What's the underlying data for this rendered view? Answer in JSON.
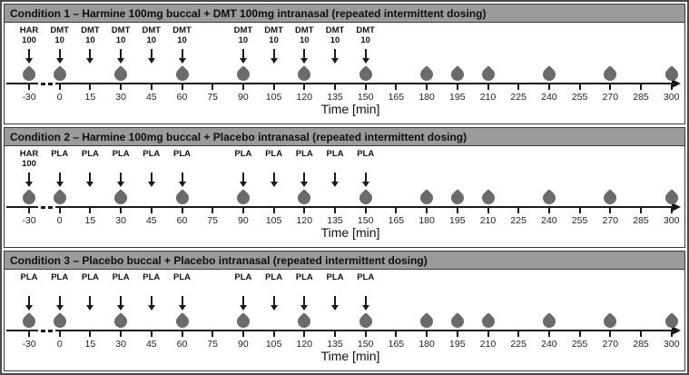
{
  "figure": {
    "type": "study-design-timeline",
    "time_axis": {
      "label": "Time [min]",
      "ticks": [
        -30,
        0,
        15,
        30,
        45,
        60,
        75,
        90,
        105,
        120,
        135,
        150,
        165,
        180,
        195,
        210,
        225,
        240,
        255,
        270,
        285,
        300
      ],
      "axis_break_between": [
        -30,
        0
      ]
    },
    "colors": {
      "header_bg": "#9b9b9b",
      "drop": "#6b6b6b",
      "ink": "#1a1a1a",
      "border_outer": "#4a4a4a",
      "border_panel": "#383838"
    },
    "panels": [
      {
        "title": "Condition 1 – Harmine 100mg buccal + DMT 100mg intranasal (repeated intermittent dosing)",
        "doses": [
          {
            "time": -30,
            "label": [
              "HAR",
              "100"
            ]
          },
          {
            "time": 0,
            "label": [
              "DMT",
              "10"
            ]
          },
          {
            "time": 15,
            "label": [
              "DMT",
              "10"
            ]
          },
          {
            "time": 30,
            "label": [
              "DMT",
              "10"
            ]
          },
          {
            "time": 45,
            "label": [
              "DMT",
              "10"
            ]
          },
          {
            "time": 60,
            "label": [
              "DMT",
              "10"
            ]
          },
          {
            "time": 90,
            "label": [
              "DMT",
              "10"
            ]
          },
          {
            "time": 105,
            "label": [
              "DMT",
              "10"
            ]
          },
          {
            "time": 120,
            "label": [
              "DMT",
              "10"
            ]
          },
          {
            "time": 135,
            "label": [
              "DMT",
              "10"
            ]
          },
          {
            "time": 150,
            "label": [
              "DMT",
              "10"
            ]
          }
        ],
        "sample_times": [
          -30,
          0,
          30,
          60,
          90,
          120,
          150,
          180,
          195,
          210,
          240,
          270,
          300
        ]
      },
      {
        "title": "Condition 2 – Harmine 100mg buccal + Placebo intranasal (repeated intermittent dosing)",
        "doses": [
          {
            "time": -30,
            "label": [
              "HAR",
              "100"
            ]
          },
          {
            "time": 0,
            "label": [
              "PLA"
            ]
          },
          {
            "time": 15,
            "label": [
              "PLA"
            ]
          },
          {
            "time": 30,
            "label": [
              "PLA"
            ]
          },
          {
            "time": 45,
            "label": [
              "PLA"
            ]
          },
          {
            "time": 60,
            "label": [
              "PLA"
            ]
          },
          {
            "time": 90,
            "label": [
              "PLA"
            ]
          },
          {
            "time": 105,
            "label": [
              "PLA"
            ]
          },
          {
            "time": 120,
            "label": [
              "PLA"
            ]
          },
          {
            "time": 135,
            "label": [
              "PLA"
            ]
          },
          {
            "time": 150,
            "label": [
              "PLA"
            ]
          }
        ],
        "sample_times": [
          -30,
          0,
          30,
          60,
          90,
          120,
          150,
          180,
          195,
          210,
          240,
          270,
          300
        ]
      },
      {
        "title": "Condition 3 – Placebo buccal + Placebo intranasal (repeated intermittent dosing)",
        "doses": [
          {
            "time": -30,
            "label": [
              "PLA"
            ]
          },
          {
            "time": 0,
            "label": [
              "PLA"
            ]
          },
          {
            "time": 15,
            "label": [
              "PLA"
            ]
          },
          {
            "time": 30,
            "label": [
              "PLA"
            ]
          },
          {
            "time": 45,
            "label": [
              "PLA"
            ]
          },
          {
            "time": 60,
            "label": [
              "PLA"
            ]
          },
          {
            "time": 90,
            "label": [
              "PLA"
            ]
          },
          {
            "time": 105,
            "label": [
              "PLA"
            ]
          },
          {
            "time": 120,
            "label": [
              "PLA"
            ]
          },
          {
            "time": 135,
            "label": [
              "PLA"
            ]
          },
          {
            "time": 150,
            "label": [
              "PLA"
            ]
          }
        ],
        "sample_times": [
          -30,
          0,
          30,
          60,
          90,
          120,
          150,
          180,
          195,
          210,
          240,
          270,
          300
        ]
      }
    ]
  }
}
